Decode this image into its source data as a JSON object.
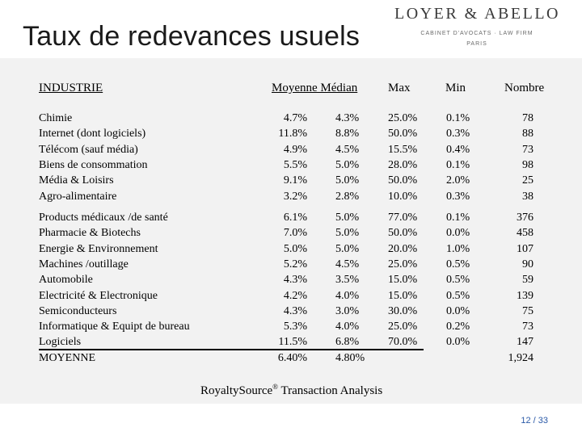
{
  "title": "Taux de redevances usuels",
  "logo": {
    "name": "LOYER & ABELLO",
    "tagline": "CABINET D'AVOCATS · LAW FIRM",
    "city": "PARIS"
  },
  "table": {
    "headers": {
      "industry": "INDUSTRIE",
      "mean_median": "Moyenne  Médian",
      "max": "Max",
      "min": "Min",
      "count": "Nombre"
    },
    "group1": {
      "industry": [
        "Chimie",
        "Internet (dont logiciels)",
        "Télécom (sauf média)",
        "Biens de consommation",
        "Média & Loisirs",
        "Agro-alimentaire"
      ],
      "mean": [
        "4.7%",
        "11.8%",
        "4.9%",
        "5.5%",
        "9.1%",
        "3.2%"
      ],
      "median": [
        "4.3%",
        "8.8%",
        "4.5%",
        "5.0%",
        "5.0%",
        "2.8%"
      ],
      "max": [
        "25.0%",
        "50.0%",
        "15.5%",
        "28.0%",
        "50.0%",
        "10.0%"
      ],
      "min": [
        "0.1%",
        "0.3%",
        "0.4%",
        "0.1%",
        "2.0%",
        "0.3%"
      ],
      "count": [
        "78",
        "88",
        "73",
        "98",
        "25",
        "38"
      ]
    },
    "group2": {
      "industry": [
        "Products médicaux /de santé",
        "Pharmacie & Biotechs",
        "Energie & Environnement",
        "Machines /outillage",
        "Automobile",
        "Electricité & Electronique",
        "Semiconducteurs",
        "Informatique & Equipt de bureau",
        "Logiciels",
        "MOYENNE"
      ],
      "mean": [
        "6.1%",
        "7.0%",
        "5.0%",
        "5.2%",
        "4.3%",
        "4.2%",
        "4.3%",
        "5.3%",
        "11.5%",
        "6.40%"
      ],
      "median": [
        "5.0%",
        "5.0%",
        "5.0%",
        "4.5%",
        "3.5%",
        "4.0%",
        "3.0%",
        "4.0%",
        "6.8%",
        "4.80%"
      ],
      "max": [
        "77.0%",
        "50.0%",
        "20.0%",
        "25.0%",
        "15.0%",
        "15.0%",
        "30.0%",
        "25.0%",
        "70.0%"
      ],
      "min": [
        "0.1%",
        "0.0%",
        "1.0%",
        "0.5%",
        "0.5%",
        "0.5%",
        "0.0%",
        "0.2%",
        "0.0%"
      ],
      "count": [
        "376",
        "458",
        "107",
        "90",
        "59",
        "139",
        "75",
        "73",
        "147",
        "1,924"
      ]
    }
  },
  "source": {
    "text": "RoyaltySource",
    "mark": "®",
    "suffix": " Transaction Analysis"
  },
  "page_number": "12 / 33"
}
